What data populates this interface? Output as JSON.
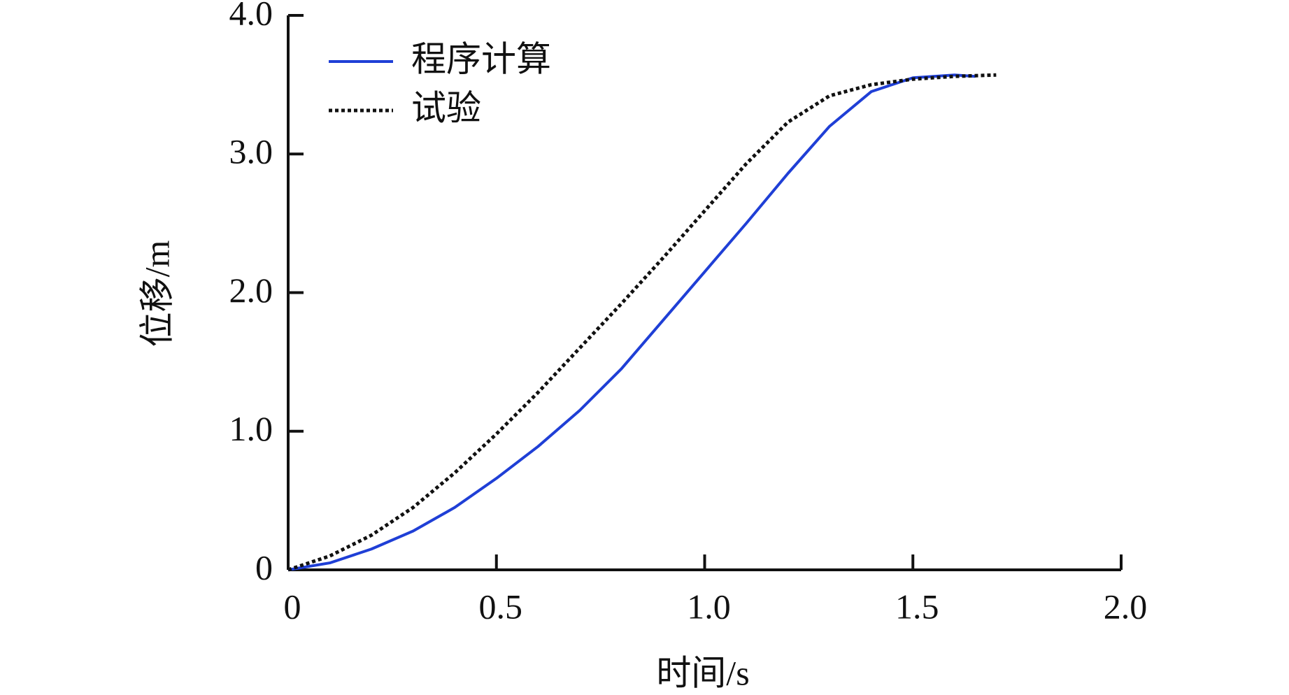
{
  "chart_data": {
    "type": "line",
    "x_label": "时间/s",
    "y_label": "位移/m",
    "xlim": [
      0,
      2
    ],
    "ylim": [
      0,
      4
    ],
    "xticks": [
      0,
      0.5,
      {
        "value": 1,
        "label": "1.0"
      },
      1.5,
      {
        "value": 2,
        "label": "2.0"
      }
    ],
    "yticks": [
      0,
      {
        "value": 1,
        "label": "1.0"
      },
      {
        "value": 2,
        "label": "2.0"
      },
      {
        "value": 3,
        "label": "3.0"
      },
      {
        "value": 4,
        "label": "4.0"
      }
    ],
    "legend": "upper-left",
    "series": [
      {
        "name": "程序计算",
        "color": "#1f3fd6",
        "style": "solid",
        "x": [
          0,
          0.1,
          0.2,
          0.3,
          0.4,
          0.5,
          0.6,
          0.7,
          0.8,
          0.9,
          1.0,
          1.1,
          1.2,
          1.3,
          1.4,
          1.5,
          1.6,
          1.65
        ],
        "values": [
          0,
          0.05,
          0.15,
          0.28,
          0.45,
          0.66,
          0.89,
          1.15,
          1.45,
          1.8,
          2.15,
          2.5,
          2.86,
          3.2,
          3.45,
          3.55,
          3.57,
          3.56
        ]
      },
      {
        "name": "试验",
        "color": "#111111",
        "style": "dotted",
        "x": [
          0,
          0.1,
          0.2,
          0.3,
          0.4,
          0.5,
          0.6,
          0.7,
          0.8,
          0.9,
          1.0,
          1.1,
          1.2,
          1.3,
          1.4,
          1.5,
          1.6,
          1.7
        ],
        "values": [
          0,
          0.1,
          0.25,
          0.45,
          0.7,
          0.98,
          1.28,
          1.6,
          1.92,
          2.25,
          2.59,
          2.93,
          3.23,
          3.42,
          3.5,
          3.54,
          3.56,
          3.57
        ]
      }
    ]
  }
}
